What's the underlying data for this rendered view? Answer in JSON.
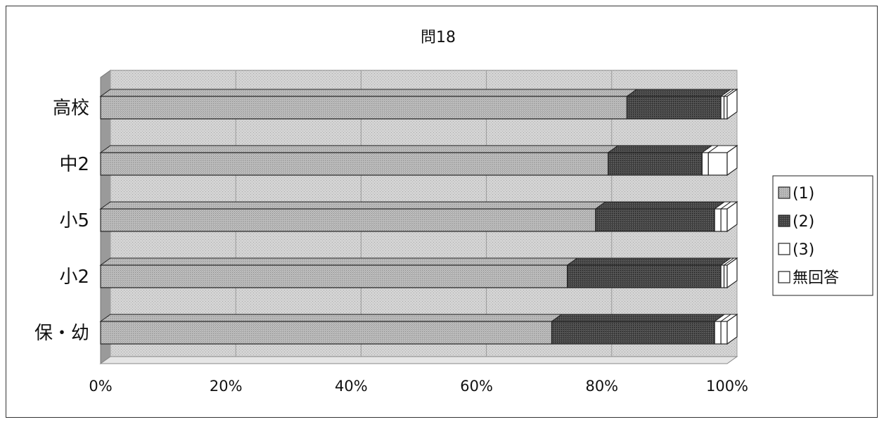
{
  "chart_data": {
    "type": "bar",
    "orientation": "horizontal",
    "stacked": "percent",
    "title": "問18",
    "categories": [
      "保・幼",
      "小2",
      "小5",
      "中2",
      "高校"
    ],
    "series": [
      {
        "name": "(1)",
        "color": "#b0b0b0",
        "values": [
          72,
          74.5,
          79,
          81,
          84
        ]
      },
      {
        "name": "(2)",
        "color": "#4a4a4a",
        "values": [
          26,
          24.5,
          19,
          15,
          15
        ]
      },
      {
        "name": "(3)",
        "color": "#ffffff",
        "values": [
          1,
          0.5,
          1,
          1,
          0.5
        ]
      },
      {
        "name": "無回答",
        "color": "#ffffff",
        "values": [
          1,
          0.5,
          1,
          3,
          0.5
        ]
      }
    ],
    "x_ticks": [
      "0%",
      "20%",
      "40%",
      "60%",
      "80%",
      "100%"
    ],
    "xlim": [
      0,
      100
    ],
    "grid": true,
    "legend_position": "right",
    "style": "3d"
  }
}
